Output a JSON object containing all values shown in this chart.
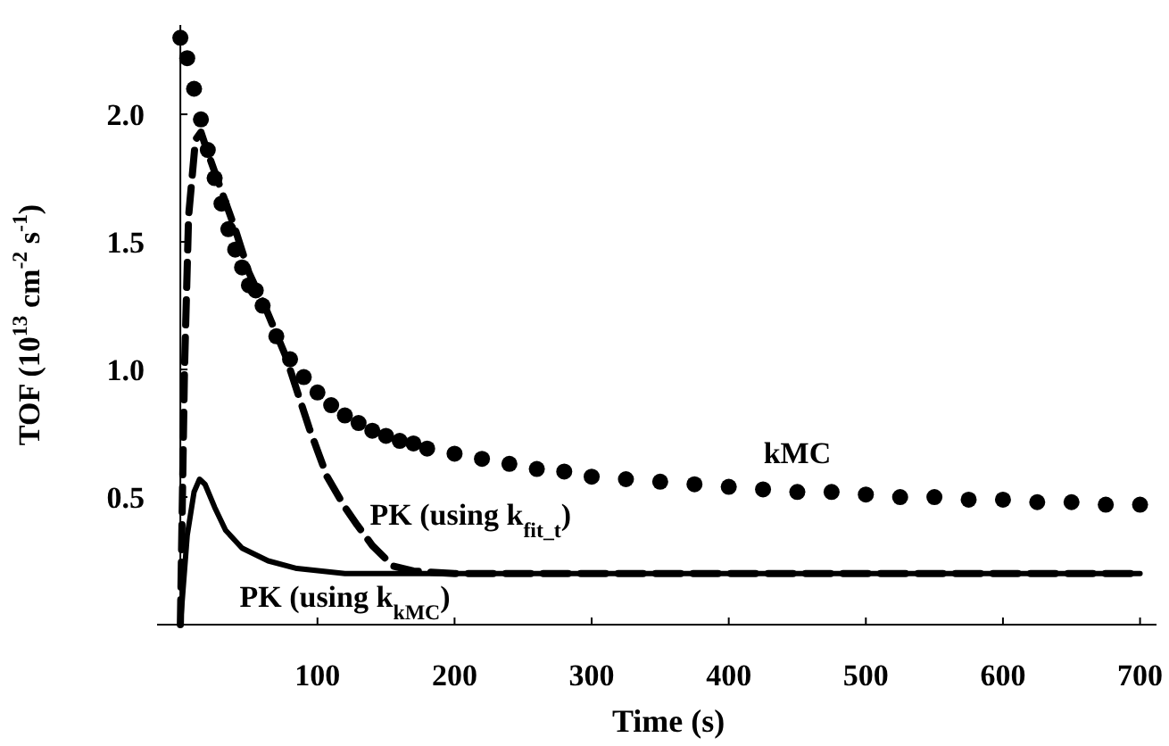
{
  "chart_data": {
    "type": "line",
    "xlabel": "Time (s)",
    "ylabel": "TOF (10$^{13}$ cm$^{-2}$ s$^{-1}$)",
    "xlim": [
      -17,
      712
    ],
    "ylim": [
      0,
      2.35
    ],
    "xticks": [
      100,
      200,
      300,
      400,
      500,
      600,
      700
    ],
    "yticks": [
      0.5,
      {
        "value": 1,
        "label": "1.0"
      },
      1.5,
      {
        "value": 2,
        "label": "2.0"
      }
    ],
    "grid": false,
    "series": [
      {
        "name": "kMC",
        "type": "scatter",
        "marker": "circle",
        "color": "#000000",
        "x": [
          0,
          5,
          10,
          15,
          20,
          25,
          30,
          35,
          40,
          45,
          50,
          55,
          60,
          70,
          80,
          90,
          100,
          110,
          120,
          130,
          140,
          150,
          160,
          170,
          180,
          200,
          220,
          240,
          260,
          280,
          300,
          325,
          350,
          375,
          400,
          425,
          450,
          475,
          500,
          525,
          550,
          575,
          600,
          625,
          650,
          675,
          700
        ],
        "values": [
          2.3,
          2.22,
          2.1,
          1.98,
          1.86,
          1.75,
          1.65,
          1.55,
          1.47,
          1.4,
          1.33,
          1.31,
          1.25,
          1.13,
          1.04,
          0.97,
          0.91,
          0.86,
          0.82,
          0.79,
          0.76,
          0.74,
          0.72,
          0.71,
          0.69,
          0.67,
          0.65,
          0.63,
          0.61,
          0.6,
          0.58,
          0.57,
          0.56,
          0.55,
          0.54,
          0.53,
          0.52,
          0.52,
          0.51,
          0.5,
          0.5,
          0.49,
          0.49,
          0.48,
          0.48,
          0.47,
          0.47
        ]
      },
      {
        "name": "PK (using k$_{fit_t}$)",
        "marker": "none",
        "line_style": "dashed",
        "color": "#000000",
        "x": [
          0,
          3,
          6,
          11,
          15,
          20,
          30,
          40,
          50,
          63,
          77,
          94,
          107,
          120,
          129,
          140,
          155,
          170,
          200,
          700
        ],
        "values": [
          0,
          1.0,
          1.6,
          1.9,
          1.93,
          1.85,
          1.7,
          1.55,
          1.38,
          1.23,
          1.05,
          0.77,
          0.58,
          0.46,
          0.39,
          0.31,
          0.23,
          0.21,
          0.2,
          0.2
        ]
      },
      {
        "name": "PK (using k$_{kMC}$)",
        "marker": "none",
        "line_style": "solid",
        "color": "#000000",
        "x": [
          0,
          5,
          10,
          14,
          18,
          25,
          33,
          45,
          64,
          85,
          120,
          700
        ],
        "values": [
          0,
          0.35,
          0.52,
          0.57,
          0.55,
          0.46,
          0.37,
          0.3,
          0.25,
          0.22,
          0.2,
          0.2
        ]
      }
    ]
  }
}
